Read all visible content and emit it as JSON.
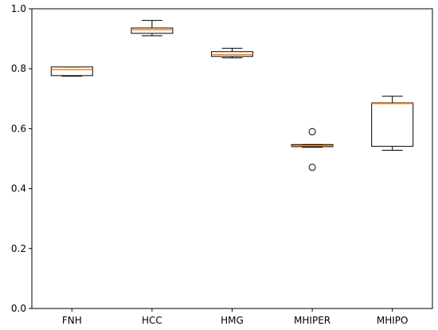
{
  "chart_data": {
    "type": "box",
    "title": "",
    "xlabel": "",
    "ylabel": "",
    "ylim": [
      0.0,
      1.0
    ],
    "yticks": [
      0.0,
      0.2,
      0.4,
      0.6,
      0.8,
      1.0
    ],
    "ytick_labels": [
      "0.0",
      "0.2",
      "0.4",
      "0.6",
      "0.8",
      "1.0"
    ],
    "grid": false,
    "categories": [
      "FNH",
      "HCC",
      "HMG",
      "MHIPER",
      "MHIPO"
    ],
    "boxes": [
      {
        "whisker_low": 0.775,
        "q1": 0.777,
        "median": 0.797,
        "q3": 0.806,
        "whisker_high": 0.806,
        "outliers": []
      },
      {
        "whisker_low": 0.91,
        "q1": 0.918,
        "median": 0.93,
        "q3": 0.936,
        "whisker_high": 0.961,
        "outliers": []
      },
      {
        "whisker_low": 0.836,
        "q1": 0.841,
        "median": 0.847,
        "q3": 0.857,
        "whisker_high": 0.868,
        "outliers": []
      },
      {
        "whisker_low": 0.538,
        "q1": 0.54,
        "median": 0.543,
        "q3": 0.547,
        "whisker_high": 0.547,
        "outliers": [
          0.59,
          0.471
        ]
      },
      {
        "whisker_low": 0.528,
        "q1": 0.541,
        "median": 0.684,
        "q3": 0.686,
        "whisker_high": 0.708,
        "outliers": []
      }
    ],
    "colors": {
      "box": "#000000",
      "median": "#ff7f0e",
      "axis": "#000000"
    }
  }
}
